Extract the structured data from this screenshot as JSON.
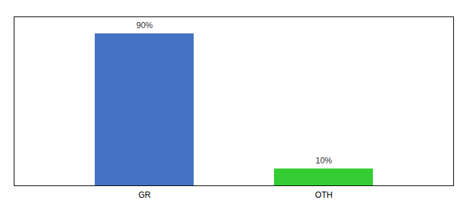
{
  "chart_data": {
    "type": "bar",
    "categories": [
      "GR",
      "OTH"
    ],
    "values": [
      90,
      10
    ],
    "value_labels": [
      "90%",
      "10%"
    ],
    "colors": [
      "#4472C4",
      "#33CC33"
    ],
    "ylim": [
      0,
      100
    ],
    "yticks": [],
    "tick_labels": "x",
    "data_labels": true,
    "grid": false
  }
}
